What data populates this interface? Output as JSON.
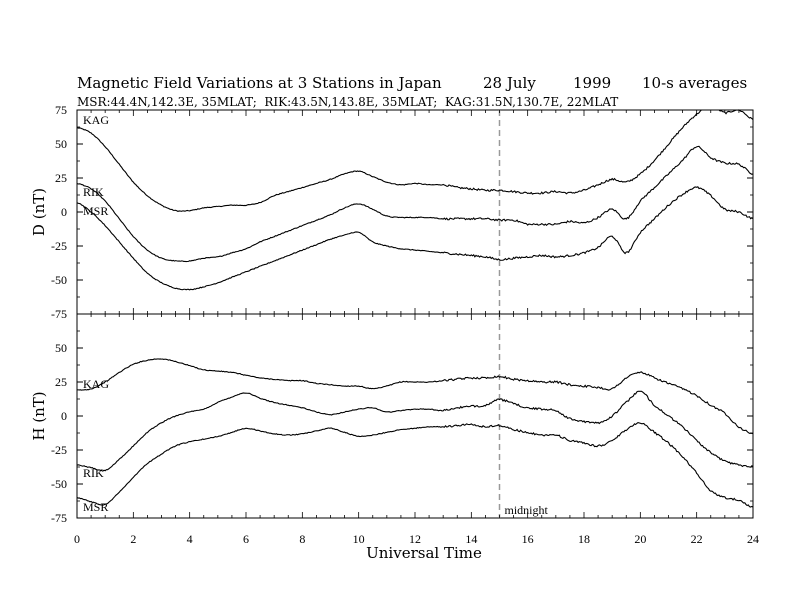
{
  "header": {
    "title": "Magnetic Field Variations at 3 Stations in Japan",
    "date": "28 July",
    "year": "1999",
    "averaging": "10-s averages",
    "stations_info": "MSR:44.4N,142.3E, 35MLAT;  RIK:43.5N,143.8E, 35MLAT;  KAG:31.5N,130.7E, 22MLAT"
  },
  "chart_data": [
    {
      "type": "line",
      "ylabel": "D (nT)",
      "xlabel": "",
      "xlim": [
        0,
        24
      ],
      "ylim": [
        -75,
        75
      ],
      "yticks": [
        75,
        50,
        25,
        0,
        -25,
        -50,
        -75
      ],
      "grid": false,
      "x": [
        0,
        0.5,
        1,
        1.5,
        2,
        2.5,
        3,
        3.5,
        4,
        4.5,
        5,
        5.5,
        6,
        6.5,
        7,
        7.5,
        8,
        8.5,
        9,
        9.5,
        10,
        10.5,
        11,
        11.5,
        12,
        12.5,
        13,
        13.5,
        14,
        14.5,
        15,
        15.5,
        16,
        16.5,
        17,
        17.5,
        18,
        18.5,
        19,
        19.5,
        20,
        20.5,
        21,
        21.5,
        22,
        22.5,
        23,
        23.5,
        24
      ],
      "series": [
        {
          "name": "KAG",
          "values": [
            62,
            58,
            48,
            35,
            22,
            12,
            5,
            1,
            1,
            3,
            4,
            5,
            5,
            7,
            12,
            15,
            18,
            21,
            24,
            28,
            30,
            26,
            22,
            20,
            21,
            20,
            20,
            18,
            17,
            16,
            16,
            15,
            14,
            14,
            15,
            14,
            16,
            20,
            24,
            22,
            28,
            38,
            50,
            62,
            72,
            78,
            73,
            75,
            68
          ]
        },
        {
          "name": "RIK",
          "values": [
            21,
            17,
            8,
            -5,
            -18,
            -28,
            -34,
            -36,
            -36,
            -34,
            -33,
            -30,
            -27,
            -22,
            -18,
            -14,
            -10,
            -6,
            -2,
            3,
            6,
            2,
            -3,
            -4,
            -4,
            -4,
            -5,
            -5,
            -5,
            -5,
            -6,
            -6,
            -9,
            -9,
            -9,
            -7,
            -8,
            -4,
            2,
            -5,
            8,
            18,
            28,
            38,
            48,
            40,
            36,
            35,
            28
          ]
        },
        {
          "name": "MSR",
          "values": [
            7,
            0,
            -10,
            -22,
            -34,
            -45,
            -52,
            -56,
            -57,
            -55,
            -52,
            -48,
            -44,
            -40,
            -36,
            -32,
            -28,
            -24,
            -20,
            -17,
            -15,
            -22,
            -25,
            -27,
            -28,
            -29,
            -30,
            -31,
            -32,
            -33,
            -35,
            -34,
            -33,
            -32,
            -33,
            -32,
            -30,
            -26,
            -18,
            -30,
            -15,
            -5,
            5,
            13,
            18,
            12,
            2,
            0,
            -5
          ]
        }
      ]
    },
    {
      "type": "line",
      "ylabel": "H (nT)",
      "xlabel": "Universal Time",
      "xlim": [
        0,
        24
      ],
      "ylim": [
        -75,
        75
      ],
      "xticks": [
        0,
        2,
        4,
        6,
        8,
        10,
        12,
        14,
        16,
        18,
        20,
        22,
        24
      ],
      "yticks": [
        75,
        50,
        25,
        0,
        -25,
        -50,
        -75
      ],
      "grid": false,
      "annotation": {
        "x": 15,
        "label": "midnight",
        "style": "dashed vertical line"
      },
      "x": [
        0,
        0.5,
        1,
        1.5,
        2,
        2.5,
        3,
        3.5,
        4,
        4.5,
        5,
        5.5,
        6,
        6.5,
        7,
        7.5,
        8,
        8.5,
        9,
        9.5,
        10,
        10.5,
        11,
        11.5,
        12,
        12.5,
        13,
        13.5,
        14,
        14.5,
        15,
        15.5,
        16,
        16.5,
        17,
        17.5,
        18,
        18.5,
        19,
        19.5,
        20,
        20.5,
        21,
        21.5,
        22,
        22.5,
        23,
        23.5,
        24
      ],
      "series": [
        {
          "name": "KAG",
          "values": [
            19,
            20,
            25,
            32,
            38,
            41,
            42,
            40,
            37,
            34,
            33,
            32,
            30,
            28,
            27,
            26,
            26,
            24,
            23,
            22,
            22,
            20,
            22,
            25,
            25,
            25,
            26,
            27,
            28,
            28,
            29,
            27,
            26,
            25,
            25,
            23,
            22,
            21,
            20,
            28,
            32,
            28,
            24,
            20,
            15,
            8,
            2,
            -8,
            -13
          ]
        },
        {
          "name": "RIK",
          "values": [
            -36,
            -38,
            -40,
            -32,
            -22,
            -12,
            -5,
            0,
            3,
            5,
            10,
            14,
            17,
            13,
            10,
            8,
            6,
            3,
            1,
            3,
            5,
            6,
            3,
            4,
            5,
            5,
            4,
            6,
            7,
            8,
            12,
            9,
            6,
            5,
            4,
            -2,
            -4,
            -5,
            0,
            10,
            18,
            8,
            0,
            -8,
            -18,
            -27,
            -33,
            -36,
            -37
          ]
        },
        {
          "name": "MSR",
          "values": [
            -60,
            -63,
            -65,
            -56,
            -45,
            -35,
            -28,
            -22,
            -19,
            -17,
            -15,
            -12,
            -9,
            -11,
            -13,
            -14,
            -13,
            -11,
            -9,
            -12,
            -15,
            -14,
            -12,
            -10,
            -9,
            -8,
            -8,
            -7,
            -6,
            -8,
            -7,
            -10,
            -12,
            -14,
            -14,
            -18,
            -20,
            -22,
            -18,
            -10,
            -5,
            -12,
            -20,
            -30,
            -42,
            -55,
            -60,
            -62,
            -67
          ]
        }
      ]
    }
  ]
}
